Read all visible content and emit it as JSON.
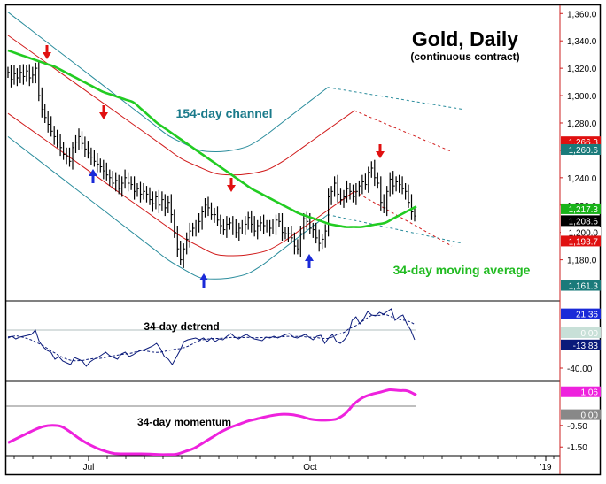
{
  "chart_title": "Gold, Daily",
  "chart_subtitle": "(continuous contract)",
  "colors": {
    "price": "#000000",
    "channel_outer": "#2a8c9c",
    "channel_inner": "#d01a1a",
    "ma34": "#22cc22",
    "detrend": "#0a1a7a",
    "momentum": "#ee22dd",
    "axis": "#cc2020",
    "arrow_down": "#e01010",
    "arrow_up": "#1a2ad8"
  },
  "annotations": {
    "channel": "154-day channel",
    "moving_average": "34-day moving average",
    "detrend": "34-day detrend",
    "momentum": "34-day momentum"
  },
  "x_axis": {
    "ticks": [
      "Jul",
      "Oct",
      "'19"
    ]
  },
  "chart_data": [
    {
      "type": "line",
      "title": "Gold, Daily",
      "subtitle": "(continuous contract)",
      "y_ticks": [
        "1,360.0",
        "1,340.0",
        "1,320.0",
        "1,300.0",
        "1,280.0",
        "1,260.0",
        "1,240.0",
        "1,220.0",
        "1,200.0",
        "1,180.0"
      ],
      "ylim": [
        1150,
        1366
      ],
      "price_tags": [
        {
          "label": "1,266.3",
          "value": 1266.3,
          "bg": "#e01010",
          "fg": "#ffffff"
        },
        {
          "label": "1,260.6",
          "value": 1260.6,
          "bg": "#1a7a7a",
          "fg": "#ffffff"
        },
        {
          "label": "1,217.3",
          "value": 1217.3,
          "bg": "#19b319",
          "fg": "#ffffff"
        },
        {
          "label": "1,208.6",
          "value": 1208.6,
          "bg": "#000000",
          "fg": "#ffffff"
        },
        {
          "label": "1,200.0",
          "value": 1200.0,
          "bg": "#ffffff",
          "fg": "#000000"
        },
        {
          "label": "1,193.7",
          "value": 1193.7,
          "bg": "#e01010",
          "fg": "#ffffff"
        },
        {
          "label": "1,161.3",
          "value": 1161.3,
          "bg": "#1a7a7a",
          "fg": "#ffffff"
        }
      ],
      "price_close": [
        1317,
        1312,
        1316,
        1313,
        1317,
        1314,
        1318,
        1313,
        1315,
        1320,
        1300,
        1290,
        1284,
        1279,
        1274,
        1270,
        1266,
        1262,
        1257,
        1256,
        1252,
        1262,
        1266,
        1270,
        1265,
        1261,
        1258,
        1255,
        1252,
        1250,
        1248,
        1245,
        1242,
        1240,
        1236,
        1238,
        1232,
        1236,
        1240,
        1236,
        1235,
        1230,
        1232,
        1228,
        1230,
        1228,
        1224,
        1221,
        1226,
        1220,
        1224,
        1218,
        1222,
        1213,
        1200,
        1188,
        1180,
        1188,
        1195,
        1201,
        1203,
        1204,
        1208,
        1215,
        1220,
        1218,
        1213,
        1213,
        1209,
        1205,
        1202,
        1206,
        1207,
        1204,
        1200,
        1203,
        1204,
        1206,
        1211,
        1206,
        1201,
        1205,
        1207,
        1205,
        1204,
        1203,
        1204,
        1209,
        1208,
        1200,
        1199,
        1199,
        1196,
        1190,
        1188,
        1199,
        1210,
        1208,
        1203,
        1202,
        1196,
        1192,
        1195,
        1201,
        1226,
        1230,
        1236,
        1228,
        1224,
        1226,
        1232,
        1230,
        1226,
        1230,
        1234,
        1237,
        1235,
        1244,
        1247,
        1240,
        1236,
        1222,
        1218,
        1230,
        1239,
        1234,
        1237,
        1235,
        1232,
        1230,
        1222,
        1215,
        1212
      ],
      "series": [
        {
          "name": "34-day moving average",
          "values": [
            1333,
            1331,
            1329,
            1327,
            1325,
            1323,
            1321,
            1318,
            1315,
            1312,
            1309,
            1306,
            1303,
            1301,
            1299,
            1297,
            1295,
            1290,
            1285,
            1280,
            1276,
            1272,
            1268,
            1264,
            1260,
            1256,
            1252,
            1248,
            1244,
            1240,
            1236,
            1232,
            1229,
            1226,
            1223,
            1220,
            1217,
            1214,
            1212,
            1210,
            1208,
            1206,
            1205,
            1204,
            1204,
            1204,
            1205,
            1206,
            1207,
            1210,
            1213,
            1216,
            1219
          ]
        },
        {
          "name": "154-day channel upper",
          "values": [
            1361,
            1352,
            1343,
            1334,
            1325,
            1316,
            1307,
            1298,
            1289,
            1280,
            1271,
            1265,
            1260,
            1259,
            1260,
            1263,
            1270,
            1279,
            1288,
            1297,
            1306
          ]
        },
        {
          "name": "154-day channel lower",
          "values": [
            1270,
            1261,
            1252,
            1243,
            1234,
            1225,
            1216,
            1207,
            1198,
            1189,
            1180,
            1173,
            1167,
            1166,
            1167,
            1170,
            1177,
            1186,
            1195,
            1204,
            1213
          ]
        }
      ]
    },
    {
      "type": "line",
      "title": "34-day detrend",
      "y_ticks": [
        "-40.00"
      ],
      "ylim": [
        -55,
        35
      ],
      "price_tags": [
        {
          "label": "21.36",
          "value": 21.36,
          "bg": "#1a2ad8",
          "fg": "#ffffff"
        },
        {
          "label": "0.00",
          "value": 0.0,
          "bg": "#c8e0d8",
          "fg": "#ffffff"
        },
        {
          "label": "-13.83",
          "value": -13.83,
          "bg": "#0a1a7a",
          "fg": "#ffffff"
        }
      ],
      "series": [
        {
          "name": "34-day detrend",
          "values": [
            -6,
            -4,
            -7,
            -5,
            -4,
            -3,
            -2,
            3,
            -10,
            -16,
            -20,
            -22,
            -30,
            -27,
            -32,
            -34,
            -36,
            -28,
            -30,
            -32,
            -38,
            -33,
            -30,
            -28,
            -25,
            -22,
            -26,
            -28,
            -30,
            -24,
            -22,
            -27,
            -25,
            -22,
            -20,
            -19,
            -17,
            -15,
            -12,
            -18,
            -27,
            -30,
            -36,
            -28,
            -20,
            -10,
            -8,
            -7,
            -6,
            -8,
            -6,
            -10,
            -6,
            -10,
            -7,
            -8,
            -4,
            -1,
            -5,
            -7,
            -4,
            -2,
            -5,
            -7,
            -8,
            -9,
            -5,
            -6,
            -4,
            -6,
            -4,
            -2,
            -1,
            -5,
            -6,
            -4,
            -2,
            -5,
            -8,
            -4,
            -3,
            -12,
            -6,
            -2,
            -10,
            -12,
            -8,
            -2,
            14,
            18,
            10,
            16,
            24,
            20,
            19,
            23,
            21,
            24,
            27,
            14,
            18,
            20,
            10,
            3,
            -8
          ]
        }
      ]
    },
    {
      "type": "line",
      "title": "34-day momentum",
      "y_ticks": [
        "-0.50",
        "-1.50"
      ],
      "ylim": [
        -1.9,
        1.5
      ],
      "price_tags": [
        {
          "label": "1.06",
          "value": 1.06,
          "bg": "#ee22dd",
          "fg": "#ffffff"
        },
        {
          "label": "0.00",
          "value": 0.0,
          "bg": "#888888",
          "fg": "#ffffff"
        }
      ],
      "series": [
        {
          "name": "34-day momentum",
          "values": [
            -1.3,
            -1.1,
            -0.9,
            -0.7,
            -0.55,
            -0.5,
            -0.55,
            -0.8,
            -1.1,
            -1.35,
            -1.55,
            -1.7,
            -1.8,
            -1.82,
            -1.82,
            -1.82,
            -1.83,
            -1.85,
            -1.85,
            -1.83,
            -1.7,
            -1.55,
            -1.3,
            -1.05,
            -0.8,
            -0.6,
            -0.45,
            -0.3,
            -0.2,
            -0.1,
            -0.02,
            0.02,
            0.0,
            -0.08,
            -0.2,
            -0.25,
            -0.25,
            -0.2,
            0.05,
            0.5,
            0.8,
            0.95,
            1.05,
            1.15,
            1.12,
            1.1,
            0.9
          ]
        }
      ]
    }
  ]
}
